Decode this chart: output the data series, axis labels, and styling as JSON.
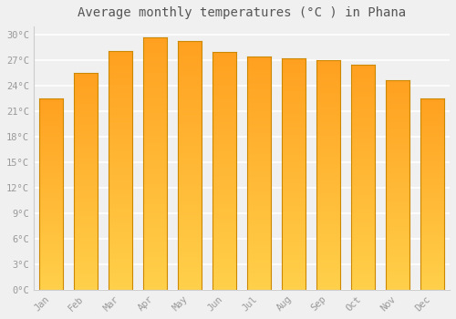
{
  "title": "Average monthly temperatures (°C ) in Phana",
  "months": [
    "Jan",
    "Feb",
    "Mar",
    "Apr",
    "May",
    "Jun",
    "Jul",
    "Aug",
    "Sep",
    "Oct",
    "Nov",
    "Dec"
  ],
  "values": [
    22.5,
    25.5,
    28.1,
    29.7,
    29.3,
    28.0,
    27.5,
    27.2,
    27.0,
    26.5,
    24.7,
    22.5
  ],
  "ylim": [
    0,
    31
  ],
  "yticks": [
    0,
    3,
    6,
    9,
    12,
    15,
    18,
    21,
    24,
    27,
    30
  ],
  "ytick_labels": [
    "0°C",
    "3°C",
    "6°C",
    "9°C",
    "12°C",
    "15°C",
    "18°C",
    "21°C",
    "24°C",
    "27°C",
    "30°C"
  ],
  "bg_color": "#f0f0f0",
  "plot_bg_color": "#f0f0f0",
  "grid_color": "#ffffff",
  "title_fontsize": 10,
  "tick_fontsize": 7.5,
  "bar_color_bottom": "#FFD04A",
  "bar_color_top": "#FFA020",
  "bar_edge_color": "#CC8800",
  "font_color": "#999999",
  "title_color": "#555555",
  "bar_width": 0.7
}
